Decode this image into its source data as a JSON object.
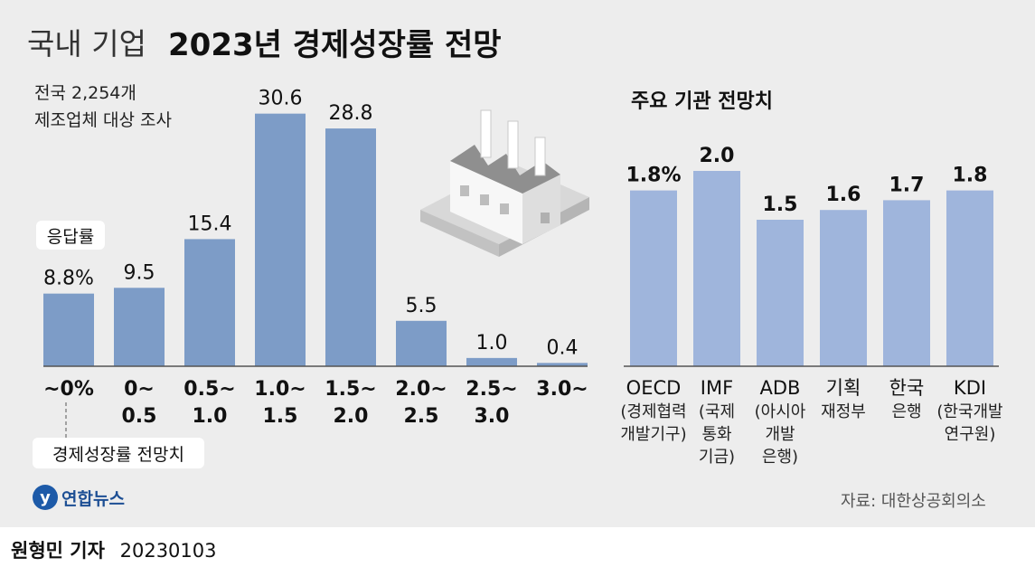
{
  "title": {
    "light": "국내 기업",
    "bold": "2023년 경제성장률 전망"
  },
  "subtitle_lines": [
    "전국 2,254개",
    "제조업체 대상 조사"
  ],
  "callouts": {
    "response_rate": "응답률",
    "growth_outlook": "경제성장률 전망치"
  },
  "right_panel_title": "주요 기관 전망치",
  "source": "자료: 대한상공회의소",
  "logo_text": "연합뉴스",
  "byline": {
    "reporter": "원형민 기자",
    "date": "20230103"
  },
  "colors": {
    "left_bars": "#7d9cc7",
    "right_bars": "#9fb5dc",
    "background": "#ededed"
  },
  "chart_data": [
    {
      "type": "bar",
      "categories": [
        "~0%",
        "0~ 0.5",
        "0.5~ 1.0",
        "1.0~ 1.5",
        "1.5~ 2.0",
        "2.0~ 2.5",
        "2.5~ 3.0",
        "3.0~"
      ],
      "category_lines": [
        [
          "~0%"
        ],
        [
          "0~",
          "0.5"
        ],
        [
          "0.5~",
          "1.0"
        ],
        [
          "1.0~",
          "1.5"
        ],
        [
          "1.5~",
          "2.0"
        ],
        [
          "2.0~",
          "2.5"
        ],
        [
          "2.5~",
          "3.0"
        ],
        [
          "3.0~"
        ]
      ],
      "values": [
        8.8,
        9.5,
        15.4,
        30.6,
        28.8,
        5.5,
        1.0,
        0.4
      ],
      "value_labels": [
        "8.8%",
        "9.5",
        "15.4",
        "30.6",
        "28.8",
        "5.5",
        "1.0",
        "0.4"
      ],
      "ylim": [
        0,
        31
      ],
      "grid": false
    },
    {
      "type": "bar",
      "categories": [
        "OECD (경제협력 개발기구)",
        "IMF (국제 통화 기금)",
        "ADB (아시아 개발 은행)",
        "기획 재정부",
        "한국 은행",
        "KDI (한국개발 연구원)"
      ],
      "category_lines": [
        [
          "OECD",
          "(경제협력",
          "개발기구)"
        ],
        [
          "IMF",
          "(국제",
          "통화",
          "기금)"
        ],
        [
          "ADB",
          "(아시아",
          "개발",
          "은행)"
        ],
        [
          "기획",
          "재정부"
        ],
        [
          "한국",
          "은행"
        ],
        [
          "KDI",
          "(한국개발",
          "연구원)"
        ]
      ],
      "values": [
        1.8,
        2.0,
        1.5,
        1.6,
        1.7,
        1.8
      ],
      "value_labels": [
        "1.8%",
        "2.0",
        "1.5",
        "1.6",
        "1.7",
        "1.8"
      ],
      "ylim": [
        0,
        2.0
      ],
      "grid": false
    }
  ]
}
